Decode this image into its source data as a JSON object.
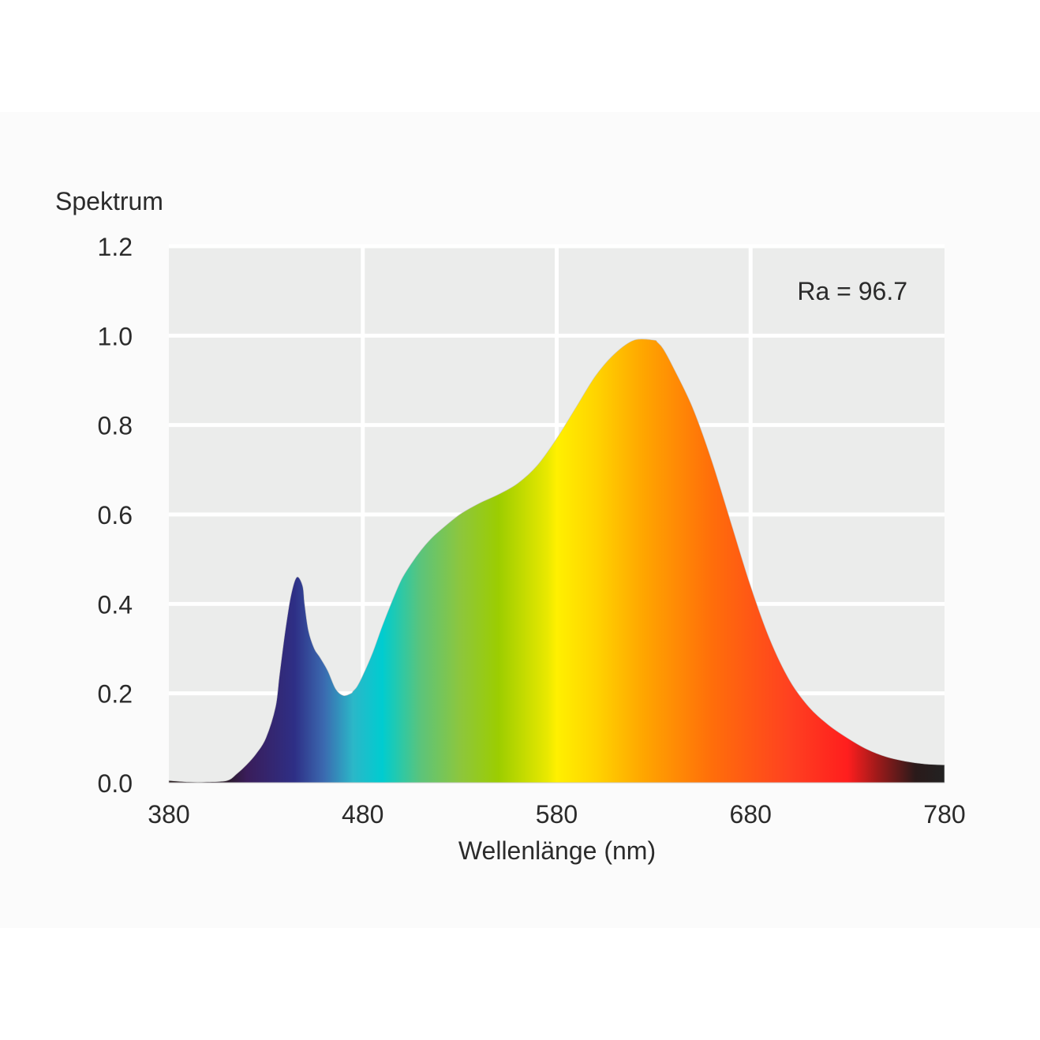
{
  "chart_data": {
    "type": "area",
    "ylabel": "Spektrum",
    "xlabel": "Wellenlänge (nm)",
    "annotation": "Ra = 96.7",
    "xlim": [
      380,
      780
    ],
    "ylim": [
      0,
      1.2
    ],
    "grid": true,
    "x_ticks": [
      380,
      480,
      580,
      680,
      780
    ],
    "x_tick_labels": [
      "380",
      "480",
      "580",
      "680",
      "780"
    ],
    "y_ticks": [
      0.0,
      0.2,
      0.4,
      0.6,
      0.8,
      1.0,
      1.2
    ],
    "y_tick_labels": [
      "0.0",
      "0.2",
      "0.4",
      "0.6",
      "0.8",
      "1.0",
      "1.2"
    ],
    "series": [
      {
        "x": [
          380,
          390,
          400,
          410,
          415,
          420,
          425,
          430,
          435,
          437,
          440,
          443,
          446,
          449,
          450,
          452,
          455,
          458,
          462,
          466,
          470,
          474,
          475,
          477,
          480,
          485,
          490,
          495,
          500,
          505,
          510,
          515,
          520,
          530,
          540,
          550,
          560,
          570,
          580,
          590,
          600,
          610,
          620,
          630,
          632,
          635,
          640,
          650,
          660,
          670,
          680,
          690,
          700,
          710,
          720,
          730,
          740,
          750,
          760,
          770,
          780
        ],
        "y": [
          0.005,
          0.002,
          0.002,
          0.005,
          0.02,
          0.04,
          0.065,
          0.1,
          0.17,
          0.24,
          0.34,
          0.42,
          0.46,
          0.44,
          0.4,
          0.34,
          0.3,
          0.28,
          0.25,
          0.21,
          0.195,
          0.2,
          0.205,
          0.215,
          0.24,
          0.29,
          0.35,
          0.405,
          0.455,
          0.49,
          0.52,
          0.545,
          0.565,
          0.6,
          0.625,
          0.645,
          0.67,
          0.71,
          0.77,
          0.84,
          0.91,
          0.96,
          0.99,
          0.99,
          0.985,
          0.97,
          0.93,
          0.84,
          0.72,
          0.58,
          0.44,
          0.32,
          0.23,
          0.17,
          0.13,
          0.1,
          0.075,
          0.058,
          0.048,
          0.042,
          0.04
        ]
      }
    ],
    "gradient_stops": [
      {
        "nm": 380,
        "color": "#2b1f22"
      },
      {
        "nm": 410,
        "color": "#2a1a2a"
      },
      {
        "nm": 420,
        "color": "#3a1d5a"
      },
      {
        "nm": 445,
        "color": "#2e2f86"
      },
      {
        "nm": 460,
        "color": "#3b6ab0"
      },
      {
        "nm": 475,
        "color": "#2bb7c8"
      },
      {
        "nm": 490,
        "color": "#00ccd0"
      },
      {
        "nm": 510,
        "color": "#5cc47a"
      },
      {
        "nm": 530,
        "color": "#8cc63e"
      },
      {
        "nm": 550,
        "color": "#9ccd00"
      },
      {
        "nm": 575,
        "color": "#e8e800"
      },
      {
        "nm": 580,
        "color": "#fff000"
      },
      {
        "nm": 600,
        "color": "#ffd400"
      },
      {
        "nm": 625,
        "color": "#ffa500"
      },
      {
        "nm": 660,
        "color": "#ff6e0a"
      },
      {
        "nm": 700,
        "color": "#ff4120"
      },
      {
        "nm": 730,
        "color": "#ff1e1e"
      },
      {
        "nm": 745,
        "color": "#a01a1a"
      },
      {
        "nm": 765,
        "color": "#2a1a1a"
      },
      {
        "nm": 780,
        "color": "#222222"
      }
    ],
    "background": "#ebeceb",
    "grid_color": "#ffffff"
  }
}
